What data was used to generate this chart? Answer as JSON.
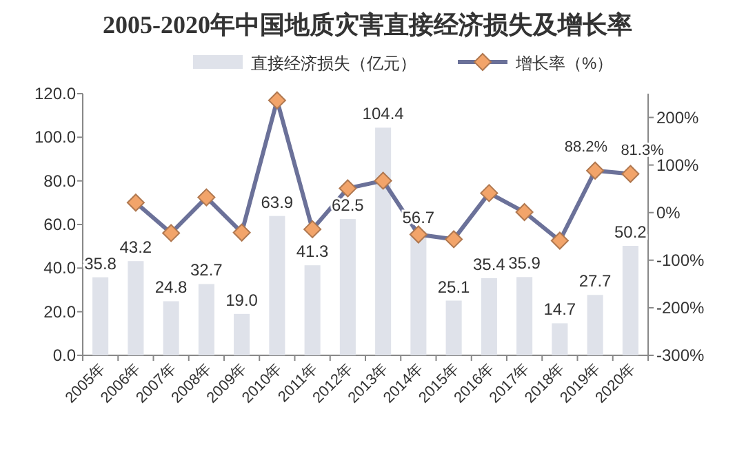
{
  "chart_data": {
    "type": "bar",
    "title": "2005-2020年中国地质灾害直接经济损失及增长率",
    "categories": [
      "2005年",
      "2006年",
      "2007年",
      "2008年",
      "2009年",
      "2010年",
      "2011年",
      "2012年",
      "2013年",
      "2014年",
      "2015年",
      "2016年",
      "2017年",
      "2018年",
      "2019年",
      "2020年"
    ],
    "series": [
      {
        "name": "直接经济损失（亿元）",
        "type": "bar",
        "color": "#dfe2ea",
        "values": [
          35.8,
          43.2,
          24.8,
          32.7,
          19.0,
          63.9,
          41.3,
          62.5,
          104.4,
          56.7,
          25.1,
          35.4,
          35.9,
          14.7,
          27.7,
          50.2
        ],
        "value_labels": [
          "35.8",
          "43.2",
          "24.8",
          "32.7",
          "19.0",
          "63.9",
          "41.3",
          "62.5",
          "104.4",
          "56.7",
          "25.1",
          "35.4",
          "35.9",
          "14.7",
          "27.7",
          "50.2"
        ]
      },
      {
        "name": "增长率（%）",
        "type": "line",
        "axis": "y2",
        "color": "#6b7199",
        "marker": "diamond",
        "values": [
          null,
          21,
          -43,
          32,
          -42,
          236,
          -35,
          51,
          67,
          -46,
          -56,
          41,
          1,
          -59,
          88.2,
          81.3
        ],
        "value_labels": [
          null,
          null,
          null,
          null,
          null,
          null,
          null,
          null,
          null,
          null,
          null,
          null,
          null,
          null,
          "88.2%",
          "81.3%"
        ]
      }
    ],
    "ylim": [
      0,
      120
    ],
    "yticks": [
      {
        "value": 0,
        "label": "0.0"
      },
      {
        "value": 20,
        "label": "20.0"
      },
      {
        "value": 40,
        "label": "40.0"
      },
      {
        "value": 60,
        "label": "60.0"
      },
      {
        "value": 80,
        "label": "80.0"
      },
      {
        "value": 100,
        "label": "100.0"
      },
      {
        "value": 120,
        "label": "120.0"
      }
    ],
    "y2lim": [
      -300,
      250
    ],
    "y2ticks": [
      {
        "value": -300,
        "label": "-300%"
      },
      {
        "value": -200,
        "label": "-200%"
      },
      {
        "value": -100,
        "label": "-100%"
      },
      {
        "value": 0,
        "label": "0%"
      },
      {
        "value": 100,
        "label": "100%"
      },
      {
        "value": 200,
        "label": "200%"
      }
    ],
    "legend": "top",
    "grid": false
  }
}
